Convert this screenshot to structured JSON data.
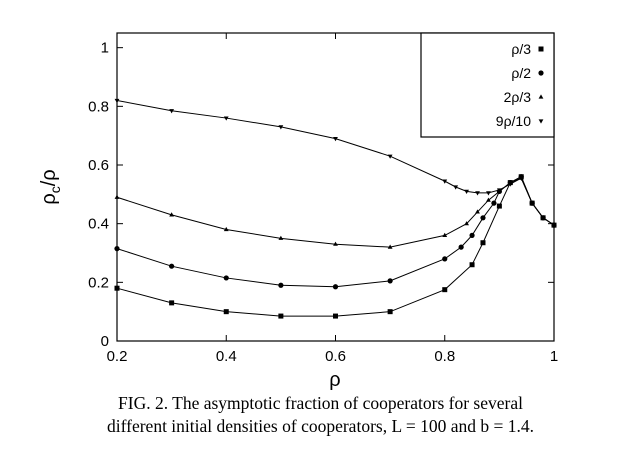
{
  "chart_data": {
    "type": "line",
    "xlabel": "ρ",
    "ylabel_main": "ρ",
    "ylabel_sub": "c",
    "ylabel_tail": "/ρ",
    "xlim": [
      0.2,
      1.0
    ],
    "ylim": [
      0,
      1.05
    ],
    "xticks": [
      0.2,
      0.4,
      0.6,
      0.8,
      1
    ],
    "yticks": [
      0,
      0.2,
      0.4,
      0.6,
      0.8,
      1
    ],
    "xtick_labels": [
      "0.2",
      "0.4",
      "0.6",
      "0.8",
      "1"
    ],
    "ytick_labels": [
      "0",
      "0.2",
      "0.4",
      "0.6",
      "0.8",
      "1"
    ],
    "legend_position": "top-right",
    "series": [
      {
        "name": "ρ/3",
        "marker": "square",
        "x": [
          0.2,
          0.3,
          0.4,
          0.5,
          0.6,
          0.7,
          0.8,
          0.85,
          0.87,
          0.9,
          0.92,
          0.94,
          0.96,
          0.98,
          1.0
        ],
        "y": [
          0.18,
          0.13,
          0.1,
          0.085,
          0.085,
          0.1,
          0.175,
          0.26,
          0.335,
          0.46,
          0.54,
          0.56,
          0.47,
          0.42,
          0.395
        ]
      },
      {
        "name": "ρ/2",
        "marker": "circle",
        "x": [
          0.2,
          0.3,
          0.4,
          0.5,
          0.6,
          0.7,
          0.8,
          0.83,
          0.85,
          0.87,
          0.89,
          0.9,
          0.92,
          0.94,
          0.96,
          0.98,
          1.0
        ],
        "y": [
          0.315,
          0.255,
          0.215,
          0.19,
          0.185,
          0.205,
          0.28,
          0.32,
          0.36,
          0.42,
          0.47,
          0.51,
          0.54,
          0.56,
          0.47,
          0.42,
          0.395
        ]
      },
      {
        "name": "2ρ/3",
        "marker": "triangle-up",
        "x": [
          0.2,
          0.3,
          0.4,
          0.5,
          0.6,
          0.7,
          0.8,
          0.84,
          0.86,
          0.88,
          0.9,
          0.92,
          0.94,
          0.96,
          0.98,
          1.0
        ],
        "y": [
          0.49,
          0.43,
          0.38,
          0.35,
          0.33,
          0.32,
          0.36,
          0.4,
          0.44,
          0.48,
          0.51,
          0.54,
          0.555,
          0.47,
          0.42,
          0.395
        ]
      },
      {
        "name": "9ρ/10",
        "marker": "triangle-down",
        "x": [
          0.2,
          0.3,
          0.4,
          0.5,
          0.6,
          0.7,
          0.8,
          0.82,
          0.84,
          0.86,
          0.88,
          0.9,
          0.92,
          0.94,
          0.96,
          0.98,
          1.0
        ],
        "y": [
          0.82,
          0.785,
          0.76,
          0.73,
          0.69,
          0.63,
          0.545,
          0.525,
          0.51,
          0.505,
          0.505,
          0.515,
          0.535,
          0.555,
          0.47,
          0.42,
          0.395
        ]
      }
    ]
  },
  "caption": {
    "line1": "FIG. 2.  The asymptotic fraction of cooperators for several",
    "line2": "different initial densities of cooperators, L = 100 and b = 1.4."
  }
}
